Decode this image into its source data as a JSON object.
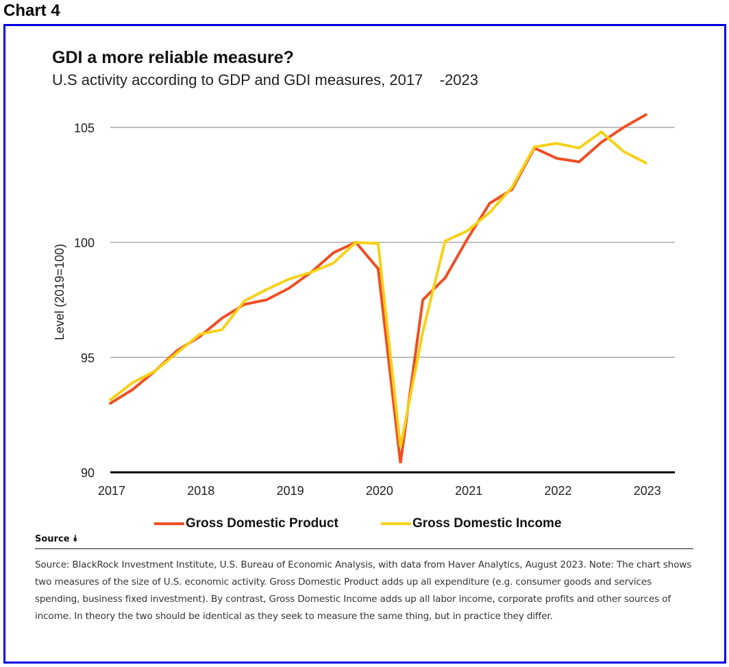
{
  "page": {
    "chart_label": "Chart 4",
    "title": "GDI a more reliable measure?",
    "subtitle": "U.S activity according to GDP and GDI measures, 2017    -2023",
    "source_toggle": "Source »",
    "source_toggle_text": "Source",
    "source_toggle_icon": "double-chevron-down-icon",
    "notes": [
      "Source: BlackRock Investment Institute, U.S. Bureau of Economic Analysis, with data from Haver Analytics, August 2023. Note: The chart shows two measures of the size of U.S. economic activity. Gross Domestic Product adds up all expenditure (e.g. consumer goods and services spending, business fixed investment). By contrast, Gross Domestic Income adds up all labor income, corporate profits and other sources of income. In theory the two should be identical as they seek to measure the same thing, but in practice they differ."
    ],
    "colors": {
      "frame": "#0000e6",
      "gdp": "#f04e23",
      "gdi": "#f7d117",
      "gridline": "#aaaaaa",
      "baseline": "#000000"
    }
  },
  "chart_data": {
    "type": "line",
    "title": "GDI a more reliable measure?",
    "subtitle": "U.S activity according to GDP and GDI measures, 2017    -2023",
    "xlabel": "",
    "ylabel": "Level (2019=100)",
    "ylim": [
      90,
      106
    ],
    "yticks": [
      90,
      95,
      100,
      105
    ],
    "xticks": [
      "2017",
      "2018",
      "2019",
      "2020",
      "2021",
      "2022",
      "2023"
    ],
    "grid": true,
    "legend_position": "bottom",
    "x": [
      "2017Q1",
      "2017Q2",
      "2017Q3",
      "2017Q4",
      "2018Q1",
      "2018Q2",
      "2018Q3",
      "2018Q4",
      "2019Q1",
      "2019Q2",
      "2019Q3",
      "2019Q4",
      "2020Q1",
      "2020Q2",
      "2020Q3",
      "2020Q4",
      "2021Q1",
      "2021Q2",
      "2021Q3",
      "2021Q4",
      "2022Q1",
      "2022Q2",
      "2022Q3",
      "2022Q4",
      "2023Q1"
    ],
    "series": [
      {
        "name": "Gross Domestic Product",
        "color": "#f04e23",
        "values": [
          93.0,
          93.6,
          94.4,
          95.3,
          95.9,
          96.7,
          97.3,
          97.5,
          98.0,
          98.7,
          99.55,
          100.0,
          98.85,
          90.4,
          97.5,
          98.45,
          100.15,
          101.7,
          102.3,
          104.1,
          103.65,
          103.5,
          104.35,
          105.0,
          105.55
        ]
      },
      {
        "name": "Gross Domestic Income",
        "color": "#f7d117",
        "values": [
          93.15,
          93.9,
          94.4,
          95.2,
          96.0,
          96.2,
          97.45,
          97.95,
          98.4,
          98.7,
          99.1,
          100.0,
          99.95,
          91.1,
          96.1,
          100.05,
          100.5,
          101.3,
          102.4,
          104.15,
          104.3,
          104.1,
          104.8,
          103.95,
          103.45
        ]
      }
    ]
  }
}
